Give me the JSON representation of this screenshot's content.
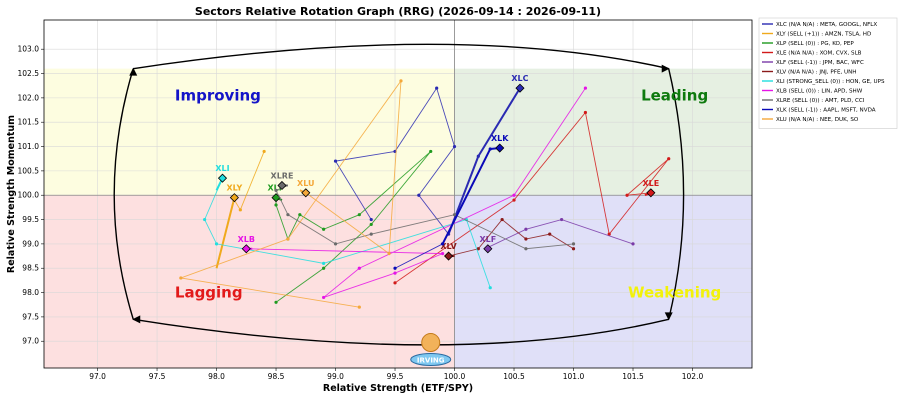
{
  "chart_data": {
    "type": "scatter",
    "title": "Sectors Relative Rotation Graph (RRG) (2026-09-14 : 2026-09-11)",
    "xlabel": "Relative Strength (ETF/SPY)",
    "ylabel": "Relative Strength Momentum",
    "xlim": [
      96.55,
      102.5
    ],
    "ylim": [
      96.45,
      103.6
    ],
    "xticks": [
      "97.0",
      "97.5",
      "98.0",
      "98.5",
      "99.0",
      "99.5",
      "100.0",
      "100.5",
      "101.0",
      "101.5",
      "102.0"
    ],
    "yticks": [
      "97.0",
      "97.5",
      "98.0",
      "98.5",
      "99.0",
      "99.5",
      "100.0",
      "100.5",
      "101.0",
      "101.5",
      "102.0",
      "102.5",
      "103.0"
    ],
    "grid": true,
    "legend_position": "right",
    "quadrants": [
      {
        "name": "Improving",
        "color": "#1414c8",
        "bg": "#fdfde0"
      },
      {
        "name": "Leading",
        "color": "#0e7a0e",
        "bg": "#e6f0e2"
      },
      {
        "name": "Lagging",
        "color": "#e21a1a",
        "bg": "#fde0e0"
      },
      {
        "name": "Weakening",
        "color": "#f2f20a",
        "bg": "#e0e0f8"
      }
    ],
    "series": [
      {
        "name": "XLC",
        "legend": "XLC (N/A N/A) : META, GOOGL, NFLX",
        "color": "#2a2ab2",
        "points": [
          [
            99.95,
            99.2
          ],
          [
            100.2,
            100.8
          ],
          [
            100.55,
            102.2
          ]
        ],
        "label": "XLC",
        "trail": [
          [
            99.3,
            99.5
          ],
          [
            99.0,
            100.7
          ],
          [
            99.5,
            100.9
          ],
          [
            99.85,
            102.2
          ],
          [
            100.0,
            101.0
          ],
          [
            99.7,
            100.0
          ],
          [
            99.95,
            99.2
          ],
          [
            100.2,
            100.8
          ],
          [
            100.55,
            102.2
          ]
        ]
      },
      {
        "name": "XLY",
        "legend": "XLY (SELL (+1)) : AMZN, TSLA, HD",
        "color": "#f0a91c",
        "points": [
          [
            98.0,
            98.5
          ],
          [
            98.14,
            99.85
          ],
          [
            98.15,
            99.95
          ]
        ],
        "label": "XLY",
        "trail": [
          [
            98.4,
            100.9
          ],
          [
            98.2,
            99.7
          ],
          [
            98.15,
            99.9
          ]
        ]
      },
      {
        "name": "XLP",
        "legend": "XLP (SELL (0)) : PG, KO, PEP",
        "color": "#1f9a1f",
        "points": [
          [
            98.55,
            99.9
          ],
          [
            98.5,
            99.95
          ]
        ],
        "label": "XLP",
        "trail": [
          [
            98.5,
            97.8
          ],
          [
            98.9,
            98.5
          ],
          [
            99.3,
            99.4
          ],
          [
            99.8,
            100.9
          ],
          [
            99.2,
            99.6
          ],
          [
            98.9,
            99.3
          ],
          [
            98.7,
            99.6
          ],
          [
            98.6,
            99.1
          ],
          [
            98.5,
            99.8
          ],
          [
            98.5,
            99.95
          ]
        ]
      },
      {
        "name": "XLE",
        "legend": "XLE (N/A N/A) : XOM, CVX, SLB",
        "color": "#d21a1a",
        "points": [
          [
            101.6,
            100.0
          ],
          [
            101.65,
            100.05
          ]
        ],
        "label": "XLE",
        "trail": [
          [
            99.5,
            98.2
          ],
          [
            100.5,
            99.9
          ],
          [
            101.1,
            101.7
          ],
          [
            101.3,
            99.2
          ],
          [
            101.8,
            100.75
          ],
          [
            101.45,
            100.0
          ],
          [
            101.65,
            100.05
          ]
        ]
      },
      {
        "name": "XLF",
        "legend": "XLF (SELL (-1)) : JPM, BAC, WFC",
        "color": "#7a3aa8",
        "points": [
          [
            100.3,
            98.95
          ],
          [
            100.28,
            98.9
          ]
        ],
        "label": "XLF",
        "trail": [
          [
            101.5,
            99.0
          ],
          [
            100.9,
            99.5
          ],
          [
            100.6,
            99.3
          ],
          [
            100.3,
            98.95
          ]
        ]
      },
      {
        "name": "XLV",
        "legend": "XLV (N/A N/A) : JNJ, PFE, UNH",
        "color": "#8b1a1a",
        "points": [
          [
            100.0,
            98.75
          ],
          [
            99.95,
            98.75
          ]
        ],
        "label": "XLV",
        "trail": [
          [
            101.0,
            98.9
          ],
          [
            100.8,
            99.2
          ],
          [
            100.6,
            99.1
          ],
          [
            100.4,
            99.5
          ],
          [
            100.2,
            98.9
          ],
          [
            99.95,
            98.75
          ]
        ]
      },
      {
        "name": "XLI",
        "legend": "XLI (STRONG_SELL (0)) : HON, GE, UPS",
        "color": "#22dede",
        "points": [
          [
            98.0,
            100.1
          ],
          [
            98.05,
            100.35
          ]
        ],
        "label": "XLI",
        "trail": [
          [
            100.3,
            98.1
          ],
          [
            100.1,
            99.5
          ],
          [
            98.9,
            98.6
          ],
          [
            98.0,
            99.0
          ],
          [
            97.9,
            99.5
          ],
          [
            98.05,
            100.35
          ]
        ]
      },
      {
        "name": "XLB",
        "legend": "XLB (SELL (0)) : LIN, APD, SHW",
        "color": "#e614e6",
        "points": [
          [
            98.3,
            98.9
          ],
          [
            98.25,
            98.9
          ]
        ],
        "label": "XLB",
        "trail": [
          [
            101.1,
            102.2
          ],
          [
            100.5,
            100.0
          ],
          [
            99.2,
            98.5
          ],
          [
            98.9,
            97.9
          ],
          [
            99.5,
            98.4
          ],
          [
            99.9,
            98.8
          ],
          [
            98.25,
            98.9
          ]
        ]
      },
      {
        "name": "XLRE",
        "legend": "XLRE (SELL (0)) : AMT, PLD, CCI",
        "color": "#6b6b6b",
        "points": [
          [
            98.6,
            100.2
          ],
          [
            98.55,
            100.2
          ]
        ],
        "label": "XLRE",
        "trail": [
          [
            101.0,
            99.0
          ],
          [
            100.6,
            98.9
          ],
          [
            100.0,
            99.6
          ],
          [
            99.3,
            99.2
          ],
          [
            99.0,
            99.0
          ],
          [
            98.6,
            99.6
          ],
          [
            98.5,
            100.1
          ],
          [
            98.6,
            100.2
          ]
        ]
      },
      {
        "name": "XLK",
        "legend": "XLK (SELL (-1)) : AAPL, MSFT, NVDA",
        "color": "#0a0ab8",
        "points": [
          [
            99.9,
            99.0
          ],
          [
            100.3,
            100.95
          ],
          [
            100.38,
            100.97
          ]
        ],
        "label": "XLK",
        "trail": [
          [
            99.5,
            98.5
          ],
          [
            99.9,
            99.0
          ],
          [
            100.3,
            100.95
          ],
          [
            100.38,
            100.97
          ]
        ]
      },
      {
        "name": "XLU",
        "legend": "XLU (N/A N/A) : NEE, DUK, SO",
        "color": "#f4a83a",
        "points": [
          [
            98.7,
            100.1
          ],
          [
            98.75,
            100.05
          ]
        ],
        "label": "XLU",
        "trail": [
          [
            99.2,
            97.7
          ],
          [
            97.7,
            98.3
          ],
          [
            98.6,
            99.1
          ],
          [
            99.55,
            102.35
          ],
          [
            99.45,
            98.8
          ],
          [
            98.75,
            100.05
          ]
        ]
      }
    ]
  },
  "watermark": {
    "text": "IRVING"
  }
}
